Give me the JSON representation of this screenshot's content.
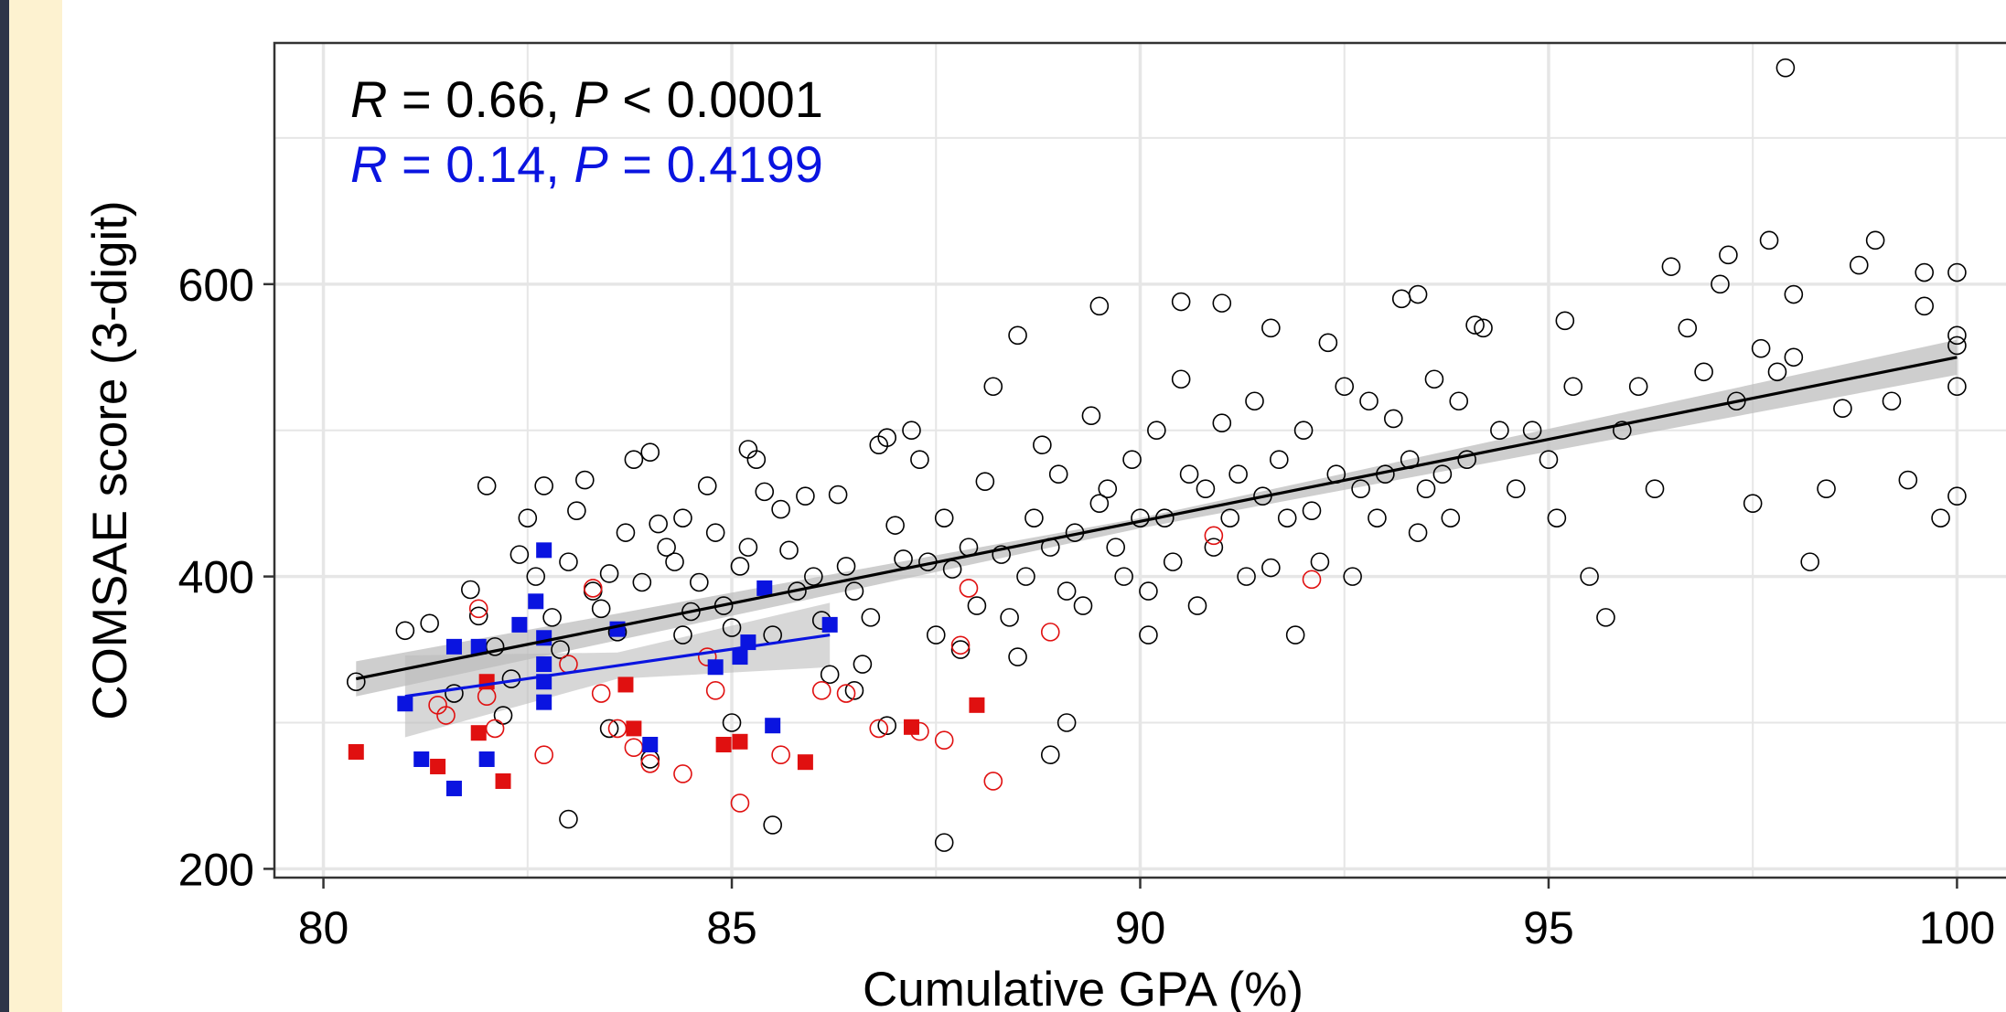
{
  "colors": {
    "overall": "#000000",
    "subgroup_blue": "#0a14e0",
    "subgroup_red": "#e01010",
    "ci_band": "#bdbdbd",
    "grid": "#e6e6e6",
    "edge_navy": "#2e3548",
    "edge_cream": "#fdf2d0"
  },
  "chart_data": {
    "type": "scatter",
    "title": "",
    "xlabel": "Cumulative GPA (%)",
    "ylabel": "COMSAE score (3-digit)",
    "xlim": [
      79.4,
      100.6
    ],
    "ylim": [
      194,
      765
    ],
    "x_ticks": [
      80,
      85,
      90,
      95,
      100
    ],
    "y_ticks": [
      200,
      400,
      600
    ],
    "x_tick_labels": [
      "80",
      "85",
      "90",
      "95",
      "100"
    ],
    "y_tick_labels": [
      "200",
      "400",
      "600"
    ],
    "grid": true,
    "legend": "none",
    "annotations": [
      {
        "parts": [
          "R",
          " = 0.66, ",
          "P",
          " < 0.0001"
        ],
        "color": "#000000"
      },
      {
        "parts": [
          "R",
          " = 0.14, ",
          "P",
          " = 0.4199"
        ],
        "color": "#0a14e0"
      }
    ],
    "series": [
      {
        "marker": "open-circle",
        "color": "#000000",
        "points": [
          [
            80.4,
            328
          ],
          [
            81.0,
            363
          ],
          [
            81.3,
            368
          ],
          [
            81.6,
            320
          ],
          [
            81.8,
            391
          ],
          [
            81.9,
            373
          ],
          [
            82.0,
            462
          ],
          [
            82.1,
            352
          ],
          [
            82.2,
            305
          ],
          [
            82.3,
            330
          ],
          [
            82.4,
            415
          ],
          [
            82.5,
            440
          ],
          [
            82.6,
            400
          ],
          [
            82.7,
            462
          ],
          [
            82.8,
            372
          ],
          [
            82.9,
            350
          ],
          [
            83.0,
            410
          ],
          [
            83.1,
            445
          ],
          [
            83.2,
            466
          ],
          [
            83.3,
            390
          ],
          [
            83.4,
            378
          ],
          [
            83.5,
            402
          ],
          [
            83.6,
            362
          ],
          [
            83.7,
            430
          ],
          [
            83.8,
            480
          ],
          [
            83.9,
            396
          ],
          [
            84.0,
            485
          ],
          [
            84.1,
            436
          ],
          [
            84.2,
            420
          ],
          [
            84.3,
            410
          ],
          [
            84.4,
            440
          ],
          [
            84.5,
            376
          ],
          [
            84.6,
            396
          ],
          [
            84.7,
            462
          ],
          [
            84.8,
            430
          ],
          [
            84.9,
            380
          ],
          [
            85.0,
            365
          ],
          [
            85.1,
            407
          ],
          [
            85.2,
            420
          ],
          [
            85.3,
            480
          ],
          [
            85.4,
            458
          ],
          [
            85.5,
            360
          ],
          [
            85.6,
            446
          ],
          [
            85.7,
            418
          ],
          [
            85.8,
            390
          ],
          [
            85.9,
            455
          ],
          [
            86.0,
            400
          ],
          [
            86.1,
            370
          ],
          [
            86.2,
            333
          ],
          [
            86.3,
            456
          ],
          [
            86.4,
            407
          ],
          [
            86.5,
            390
          ],
          [
            86.6,
            340
          ],
          [
            86.7,
            372
          ],
          [
            86.8,
            490
          ],
          [
            86.9,
            495
          ],
          [
            87.0,
            435
          ],
          [
            87.1,
            412
          ],
          [
            87.2,
            500
          ],
          [
            87.3,
            480
          ],
          [
            87.4,
            410
          ],
          [
            87.5,
            360
          ],
          [
            87.6,
            440
          ],
          [
            87.7,
            405
          ],
          [
            87.8,
            350
          ],
          [
            87.9,
            420
          ],
          [
            88.0,
            380
          ],
          [
            88.1,
            465
          ],
          [
            88.2,
            530
          ],
          [
            88.3,
            415
          ],
          [
            88.4,
            372
          ],
          [
            88.5,
            345
          ],
          [
            88.6,
            400
          ],
          [
            88.7,
            440
          ],
          [
            88.8,
            490
          ],
          [
            88.9,
            420
          ],
          [
            89.0,
            470
          ],
          [
            89.1,
            390
          ],
          [
            89.2,
            430
          ],
          [
            89.3,
            380
          ],
          [
            89.4,
            510
          ],
          [
            89.5,
            450
          ],
          [
            89.6,
            460
          ],
          [
            89.7,
            420
          ],
          [
            89.8,
            400
          ],
          [
            89.9,
            480
          ],
          [
            90.0,
            440
          ],
          [
            90.1,
            390
          ],
          [
            90.2,
            500
          ],
          [
            90.3,
            440
          ],
          [
            90.4,
            410
          ],
          [
            90.5,
            535
          ],
          [
            90.6,
            470
          ],
          [
            90.7,
            380
          ],
          [
            90.8,
            460
          ],
          [
            90.9,
            420
          ],
          [
            91.0,
            505
          ],
          [
            91.1,
            440
          ],
          [
            91.2,
            470
          ],
          [
            91.3,
            400
          ],
          [
            91.4,
            520
          ],
          [
            91.5,
            455
          ],
          [
            91.6,
            406
          ],
          [
            91.7,
            480
          ],
          [
            91.8,
            440
          ],
          [
            91.9,
            360
          ],
          [
            92.0,
            500
          ],
          [
            92.1,
            445
          ],
          [
            92.2,
            410
          ],
          [
            92.3,
            560
          ],
          [
            92.4,
            470
          ],
          [
            92.5,
            530
          ],
          [
            92.6,
            400
          ],
          [
            92.7,
            460
          ],
          [
            92.8,
            520
          ],
          [
            92.9,
            440
          ],
          [
            93.0,
            470
          ],
          [
            93.1,
            508
          ],
          [
            93.2,
            590
          ],
          [
            93.3,
            480
          ],
          [
            93.4,
            430
          ],
          [
            93.5,
            460
          ],
          [
            93.6,
            535
          ],
          [
            93.7,
            470
          ],
          [
            93.8,
            440
          ],
          [
            93.9,
            520
          ],
          [
            94.0,
            480
          ],
          [
            94.2,
            570
          ],
          [
            94.4,
            500
          ],
          [
            94.6,
            460
          ],
          [
            94.8,
            500
          ],
          [
            95.0,
            480
          ],
          [
            95.1,
            440
          ],
          [
            95.2,
            575
          ],
          [
            95.3,
            530
          ],
          [
            95.5,
            400
          ],
          [
            95.7,
            372
          ],
          [
            95.9,
            500
          ],
          [
            96.1,
            530
          ],
          [
            96.3,
            460
          ],
          [
            96.5,
            612
          ],
          [
            96.7,
            570
          ],
          [
            96.9,
            540
          ],
          [
            97.1,
            600
          ],
          [
            97.3,
            520
          ],
          [
            97.5,
            450
          ],
          [
            97.6,
            556
          ],
          [
            97.7,
            630
          ],
          [
            97.8,
            540
          ],
          [
            97.9,
            748
          ],
          [
            98.0,
            550
          ],
          [
            98.2,
            410
          ],
          [
            98.4,
            460
          ],
          [
            98.6,
            515
          ],
          [
            98.8,
            613
          ],
          [
            99.0,
            630
          ],
          [
            99.2,
            520
          ],
          [
            99.4,
            466
          ],
          [
            99.6,
            585
          ],
          [
            99.8,
            440
          ],
          [
            100.0,
            608
          ],
          [
            100.0,
            565
          ],
          [
            100.0,
            530
          ],
          [
            100.0,
            455
          ],
          [
            100.0,
            558
          ],
          [
            83.0,
            234
          ],
          [
            85.5,
            230
          ],
          [
            87.6,
            218
          ],
          [
            88.9,
            278
          ],
          [
            89.1,
            300
          ],
          [
            86.5,
            322
          ],
          [
            84.0,
            275
          ],
          [
            85.0,
            300
          ],
          [
            89.5,
            585
          ],
          [
            88.5,
            565
          ],
          [
            90.5,
            588
          ],
          [
            91.0,
            587
          ],
          [
            93.4,
            593
          ],
          [
            94.1,
            572
          ],
          [
            99.6,
            608
          ],
          [
            98.0,
            593
          ],
          [
            97.2,
            620
          ],
          [
            85.2,
            487
          ],
          [
            83.5,
            296
          ],
          [
            84.4,
            360
          ],
          [
            86.9,
            298
          ],
          [
            90.1,
            360
          ],
          [
            91.6,
            570
          ]
        ]
      },
      {
        "marker": "open-circle",
        "color": "#e01010",
        "points": [
          [
            81.4,
            312
          ],
          [
            81.5,
            305
          ],
          [
            81.9,
            378
          ],
          [
            82.0,
            318
          ],
          [
            82.1,
            296
          ],
          [
            82.7,
            278
          ],
          [
            83.0,
            340
          ],
          [
            83.3,
            392
          ],
          [
            83.4,
            320
          ],
          [
            83.6,
            296
          ],
          [
            83.8,
            283
          ],
          [
            84.0,
            272
          ],
          [
            84.4,
            265
          ],
          [
            84.7,
            345
          ],
          [
            84.8,
            322
          ],
          [
            85.1,
            245
          ],
          [
            85.6,
            278
          ],
          [
            86.1,
            322
          ],
          [
            86.4,
            320
          ],
          [
            86.8,
            296
          ],
          [
            87.3,
            294
          ],
          [
            87.6,
            288
          ],
          [
            87.8,
            353
          ],
          [
            87.9,
            392
          ],
          [
            88.2,
            260
          ],
          [
            88.9,
            362
          ],
          [
            90.9,
            428
          ],
          [
            92.1,
            398
          ]
        ]
      },
      {
        "marker": "filled-square",
        "color": "#e01010",
        "points": [
          [
            80.4,
            280
          ],
          [
            81.4,
            270
          ],
          [
            81.9,
            293
          ],
          [
            82.0,
            328
          ],
          [
            82.2,
            260
          ],
          [
            83.7,
            326
          ],
          [
            83.8,
            296
          ],
          [
            84.9,
            285
          ],
          [
            85.1,
            287
          ],
          [
            85.9,
            273
          ],
          [
            87.2,
            297
          ],
          [
            88.0,
            312
          ]
        ]
      },
      {
        "marker": "filled-square",
        "color": "#0a14e0",
        "points": [
          [
            81.0,
            313
          ],
          [
            81.2,
            275
          ],
          [
            81.6,
            255
          ],
          [
            81.6,
            352
          ],
          [
            81.9,
            352
          ],
          [
            82.0,
            275
          ],
          [
            82.4,
            367
          ],
          [
            82.6,
            383
          ],
          [
            82.7,
            418
          ],
          [
            82.7,
            358
          ],
          [
            82.7,
            340
          ],
          [
            82.7,
            328
          ],
          [
            82.7,
            314
          ],
          [
            83.6,
            364
          ],
          [
            84.0,
            285
          ],
          [
            84.8,
            338
          ],
          [
            85.1,
            345
          ],
          [
            85.2,
            355
          ],
          [
            85.4,
            392
          ],
          [
            85.5,
            298
          ],
          [
            86.2,
            367
          ]
        ]
      }
    ],
    "fit_lines": [
      {
        "color": "#000000",
        "x": [
          80.4,
          100.0
        ],
        "y": [
          330,
          550
        ],
        "band_x": [
          80.4,
          90.0,
          100.0
        ],
        "band_lo": [
          318,
          433,
          538
        ],
        "band_hi": [
          342,
          440,
          562
        ]
      },
      {
        "color": "#0a14e0",
        "x": [
          81.0,
          86.2
        ],
        "y": [
          318,
          360
        ],
        "band_x": [
          81.0,
          83.6,
          86.2
        ],
        "band_lo": [
          290,
          330,
          338
        ],
        "band_hi": [
          346,
          348,
          382
        ]
      }
    ]
  }
}
